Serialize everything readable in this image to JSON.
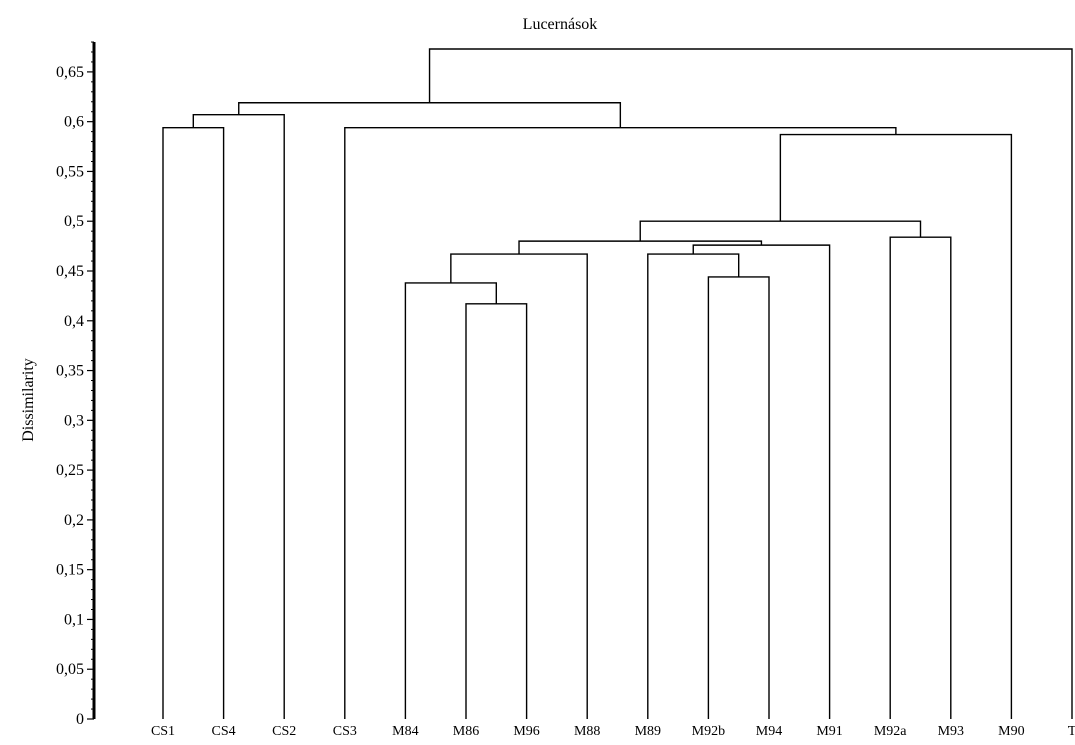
{
  "chart_data": {
    "type": "dendrogram",
    "title": "Lucernások",
    "ylabel": "Dissimilarity",
    "ylim": [
      0,
      0.675
    ],
    "yticks": [
      0,
      0.05,
      0.1,
      0.15,
      0.2,
      0.25,
      0.3,
      0.35,
      0.4,
      0.45,
      0.5,
      0.55,
      0.6,
      0.65
    ],
    "ytick_labels": [
      "0",
      "0,05",
      "0,1",
      "0,15",
      "0,2",
      "0,25",
      "0,3",
      "0,35",
      "0,4",
      "0,45",
      "0,5",
      "0,55",
      "0,6",
      "0,65"
    ],
    "leaves": [
      "CS1",
      "CS4",
      "CS2",
      "CS3",
      "M84",
      "M86",
      "M96",
      "M88",
      "M89",
      "M92b",
      "M94",
      "M91",
      "M92a",
      "M93",
      "M90",
      "T"
    ],
    "merges": [
      {
        "id": "n1",
        "left": "M86",
        "right": "M96",
        "height": 0.417
      },
      {
        "id": "n2",
        "left": "M84",
        "right": "n1",
        "height": 0.438
      },
      {
        "id": "n3",
        "left": "n2",
        "right": "M88",
        "height": 0.467
      },
      {
        "id": "n4",
        "left": "M92b",
        "right": "M94",
        "height": 0.444
      },
      {
        "id": "n5",
        "left": "M89",
        "right": "n4",
        "height": 0.467
      },
      {
        "id": "n6",
        "left": "n5",
        "right": "M91",
        "height": 0.476
      },
      {
        "id": "n7",
        "left": "n3",
        "right": "n6",
        "height": 0.48
      },
      {
        "id": "n8",
        "left": "M92a",
        "right": "M93",
        "height": 0.484
      },
      {
        "id": "n9",
        "left": "n7",
        "right": "n8",
        "height": 0.5
      },
      {
        "id": "n10",
        "left": "n9",
        "right": "M90",
        "height": 0.587
      },
      {
        "id": "n11",
        "left": "CS3",
        "right": "n10",
        "height": 0.594
      },
      {
        "id": "n12",
        "left": "CS1",
        "right": "CS4",
        "height": 0.594
      },
      {
        "id": "n13",
        "left": "n12",
        "right": "CS2",
        "height": 0.607
      },
      {
        "id": "n14",
        "left": "n13",
        "right": "n11",
        "height": 0.619
      },
      {
        "id": "n15",
        "left": "n14",
        "right": "T",
        "height": 0.673
      }
    ]
  }
}
